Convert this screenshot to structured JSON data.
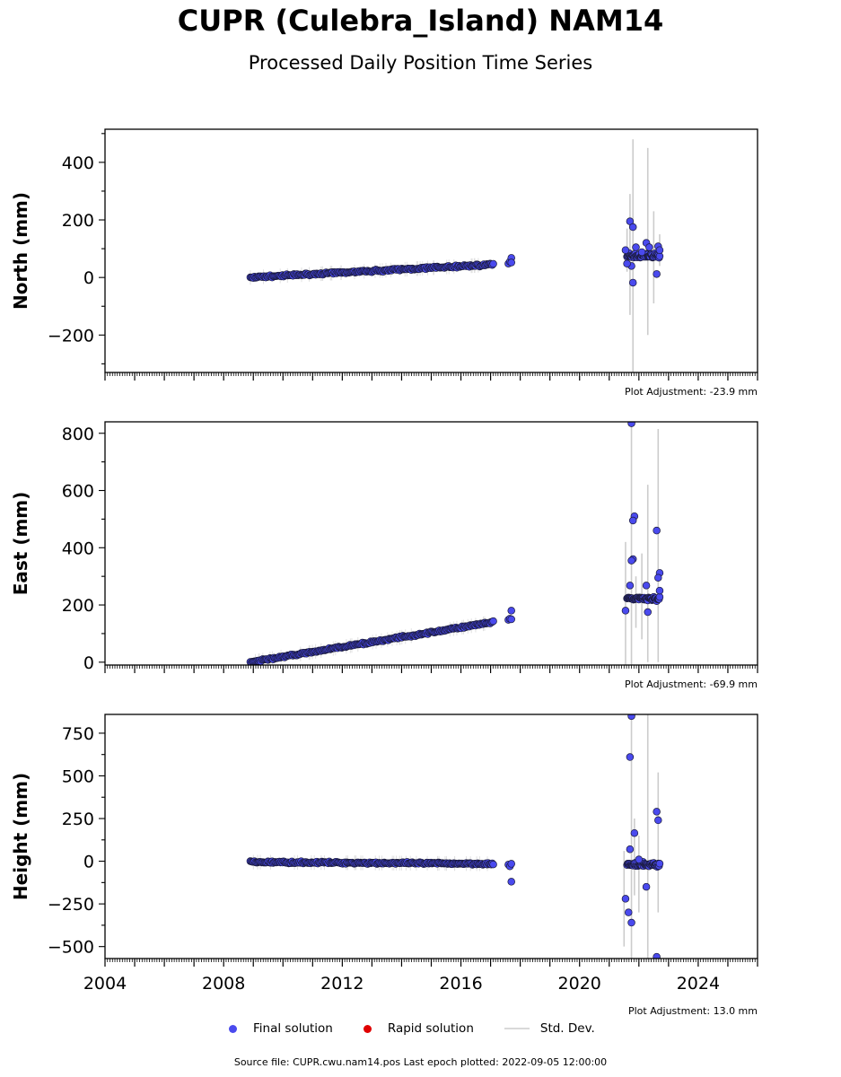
{
  "header": {
    "title": "CUPR (Culebra_Island) NAM14",
    "subtitle": "Processed Daily Position Time Series"
  },
  "legend": {
    "final": "Final solution",
    "rapid": "Rapid solution",
    "std": "Std. Dev."
  },
  "footer": {
    "source": "Source file: CUPR.cwu.nam14.pos  Last epoch plotted: 2022-09-05 12:00:00"
  },
  "colors": {
    "final": "#4a4aee",
    "final_edge": "#1a1a3a",
    "rapid": "#e00000",
    "std": "#cccccc"
  },
  "chart_data": [
    {
      "type": "scatter",
      "ylabel": "North (mm)",
      "xlim": [
        2004,
        2026
      ],
      "ylim": [
        -330,
        515
      ],
      "yticks": [
        -200,
        0,
        200,
        400
      ],
      "adjustment": "Plot Adjustment: -23.9 mm",
      "trend": {
        "x": [
          2008.9,
          2017.1
        ],
        "y": [
          0,
          45
        ]
      },
      "gap_points": [
        [
          2017.6,
          48
        ],
        [
          2017.65,
          55
        ],
        [
          2017.7,
          68
        ],
        [
          2017.7,
          52
        ]
      ],
      "late_range": [
        2021.6,
        2022.7
      ],
      "late_base": 76,
      "outliers": [
        [
          2021.7,
          195
        ],
        [
          2021.8,
          175
        ],
        [
          2021.75,
          40
        ],
        [
          2021.8,
          -18
        ],
        [
          2021.9,
          105
        ],
        [
          2022.1,
          88
        ],
        [
          2022.25,
          120
        ],
        [
          2022.35,
          105
        ],
        [
          2022.6,
          12
        ],
        [
          2022.65,
          108
        ],
        [
          2022.7,
          95
        ],
        [
          2021.55,
          95
        ],
        [
          2021.6,
          48
        ]
      ],
      "stddev": [
        [
          2021.8,
          -330,
          480
        ],
        [
          2022.3,
          -200,
          450
        ],
        [
          2021.7,
          -130,
          290
        ],
        [
          2022.5,
          -90,
          230
        ],
        [
          2022.7,
          40,
          150
        ],
        [
          2021.6,
          20,
          170
        ]
      ]
    },
    {
      "type": "scatter",
      "ylabel": "East (mm)",
      "xlim": [
        2004,
        2026
      ],
      "ylim": [
        -10,
        840
      ],
      "yticks": [
        0,
        200,
        400,
        600,
        800
      ],
      "adjustment": "Plot Adjustment: -69.9 mm",
      "trend": {
        "x": [
          2008.9,
          2017.1
        ],
        "y": [
          0,
          140
        ]
      },
      "gap_points": [
        [
          2017.6,
          148
        ],
        [
          2017.65,
          152
        ],
        [
          2017.7,
          180
        ],
        [
          2017.7,
          150
        ]
      ],
      "late_range": [
        2021.6,
        2022.7
      ],
      "late_base": 222,
      "outliers": [
        [
          2021.75,
          835
        ],
        [
          2021.85,
          510
        ],
        [
          2021.8,
          495
        ],
        [
          2021.8,
          360
        ],
        [
          2021.75,
          355
        ],
        [
          2021.7,
          268
        ],
        [
          2021.55,
          180
        ],
        [
          2022.25,
          268
        ],
        [
          2022.3,
          175
        ],
        [
          2022.6,
          460
        ],
        [
          2022.7,
          312
        ],
        [
          2022.65,
          295
        ],
        [
          2022.7,
          250
        ]
      ],
      "stddev": [
        [
          2021.75,
          -10,
          840
        ],
        [
          2021.55,
          -10,
          420
        ],
        [
          2022.1,
          80,
          380
        ],
        [
          2022.3,
          0,
          620
        ],
        [
          2022.65,
          0,
          815
        ],
        [
          2021.9,
          120,
          300
        ]
      ]
    },
    {
      "type": "scatter",
      "ylabel": "Height (mm)",
      "xlim": [
        2004,
        2026
      ],
      "ylim": [
        -570,
        860
      ],
      "yticks": [
        -500,
        -250,
        0,
        250,
        500,
        750
      ],
      "xticks": [
        2004,
        2008,
        2012,
        2016,
        2020,
        2024
      ],
      "adjustment": "Plot Adjustment: 13.0 mm",
      "trend": {
        "x": [
          2008.9,
          2017.1
        ],
        "y": [
          -5,
          -15
        ]
      },
      "gap_points": [
        [
          2017.6,
          -20
        ],
        [
          2017.65,
          -30
        ],
        [
          2017.7,
          -120
        ],
        [
          2017.7,
          -15
        ]
      ],
      "late_range": [
        2021.6,
        2022.7
      ],
      "late_base": -20,
      "outliers": [
        [
          2021.75,
          850
        ],
        [
          2021.7,
          610
        ],
        [
          2021.85,
          165
        ],
        [
          2021.55,
          -220
        ],
        [
          2021.65,
          -300
        ],
        [
          2021.75,
          -360
        ],
        [
          2022.25,
          -150
        ],
        [
          2022.6,
          290
        ],
        [
          2022.65,
          240
        ],
        [
          2022.6,
          -560
        ],
        [
          2021.7,
          70
        ],
        [
          2022.0,
          10
        ]
      ],
      "stddev": [
        [
          2021.75,
          -570,
          860
        ],
        [
          2021.5,
          -500,
          60
        ],
        [
          2022.3,
          -570,
          860
        ],
        [
          2022.0,
          -300,
          150
        ],
        [
          2022.65,
          -300,
          520
        ],
        [
          2021.85,
          -200,
          250
        ]
      ]
    }
  ]
}
